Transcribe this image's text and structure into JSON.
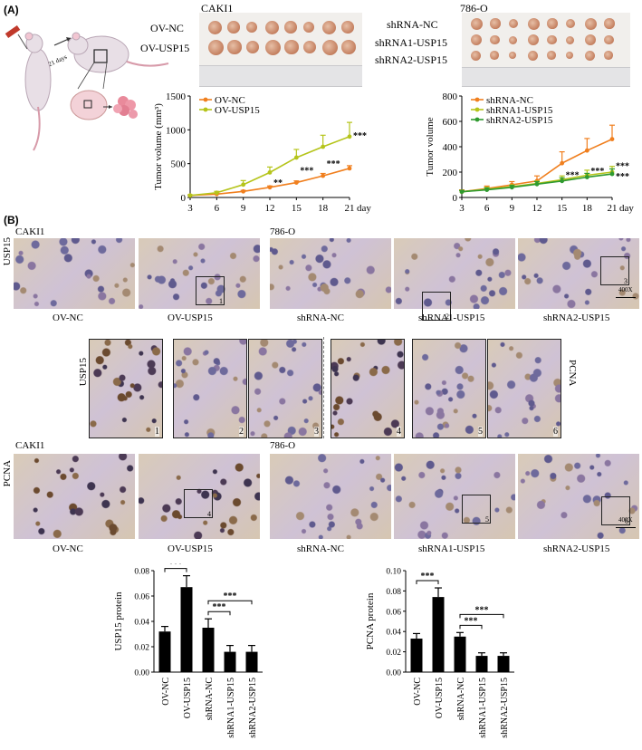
{
  "panel_labels": {
    "a": "(A)",
    "b": "(B)"
  },
  "schematic": {
    "arrow_label": "21 days"
  },
  "photos": {
    "left_title": "CAKI1",
    "left_rows": [
      "OV-NC",
      "OV-USP15"
    ],
    "right_title": "786-O",
    "right_rows": [
      "shRNA-NC",
      "shRNA1-USP15",
      "shRNA2-USP15"
    ]
  },
  "ihc": {
    "usp15_row_label": "USP15",
    "pcna_row_label": "PCNA",
    "group_left": "CAKI1",
    "group_right": "786-O",
    "captions": [
      "OV-NC",
      "OV-USP15",
      "shRNA-NC",
      "shRNA1-USP15",
      "shRNA2-USP15"
    ],
    "box_numbers_top": [
      "1",
      "2",
      "3"
    ],
    "box_numbers_bottom": [
      "4",
      "5",
      "6"
    ],
    "zoom_left_label": "USP15",
    "zoom_right_label": "PCNA",
    "zoom_numbers": [
      "1",
      "2",
      "3",
      "4",
      "5",
      "6"
    ],
    "scale_label": "400X"
  },
  "colors": {
    "orange": "#f07f1e",
    "yellowgreen": "#b5c41a",
    "green": "#2f9a2f",
    "black": "#000000"
  },
  "chart_data": [
    {
      "type": "line",
      "title": "",
      "xlabel": "day",
      "ylabel": "Tumor volume (mm³)",
      "x": [
        3,
        6,
        9,
        12,
        15,
        18,
        21
      ],
      "xlim": [
        3,
        21
      ],
      "ylim": [
        0,
        1500
      ],
      "yticks": [
        0,
        500,
        1000,
        1500
      ],
      "series": [
        {
          "name": "OV-NC",
          "color": "#f07f1e",
          "values": [
            30,
            50,
            90,
            150,
            220,
            320,
            430
          ],
          "errors": [
            5,
            10,
            15,
            20,
            25,
            35,
            40
          ]
        },
        {
          "name": "OV-USP15",
          "color": "#b5c41a",
          "values": [
            30,
            70,
            190,
            370,
            590,
            750,
            900
          ],
          "errors": [
            10,
            20,
            60,
            80,
            120,
            170,
            210
          ]
        }
      ],
      "annotations": [
        {
          "x": 12,
          "text": "**"
        },
        {
          "x": 15,
          "text": "***"
        },
        {
          "x": 18,
          "text": "***"
        },
        {
          "x": 21,
          "text": "***"
        }
      ],
      "legend": "top-left"
    },
    {
      "type": "line",
      "title": "",
      "xlabel": "day",
      "ylabel": "Tumor volume",
      "x": [
        3,
        6,
        9,
        12,
        15,
        18,
        21
      ],
      "xlim": [
        3,
        21
      ],
      "ylim": [
        0,
        800
      ],
      "yticks": [
        0,
        200,
        400,
        600,
        800
      ],
      "series": [
        {
          "name": "shRNA-NC",
          "color": "#f07f1e",
          "values": [
            45,
            70,
            100,
            130,
            270,
            370,
            460
          ],
          "errors": [
            15,
            20,
            25,
            40,
            90,
            95,
            110
          ]
        },
        {
          "name": "shRNA1-USP15",
          "color": "#b5c41a",
          "values": [
            45,
            65,
            85,
            110,
            140,
            175,
            200
          ],
          "errors": [
            10,
            15,
            15,
            20,
            30,
            40,
            45
          ]
        },
        {
          "name": "shRNA2-USP15",
          "color": "#2f9a2f",
          "values": [
            45,
            60,
            80,
            105,
            130,
            160,
            185
          ],
          "errors": [
            10,
            15,
            15,
            20,
            25,
            30,
            40
          ]
        }
      ],
      "annotations": [
        {
          "x": 15,
          "text": "***"
        },
        {
          "x": 18,
          "text": "***"
        },
        {
          "x": 21,
          "text": "***"
        },
        {
          "x": 21,
          "text": "***"
        }
      ],
      "legend": "top-left"
    },
    {
      "type": "bar",
      "title": "",
      "xlabel": "",
      "ylabel": "USP15 protein",
      "categories": [
        "OV-NC",
        "OV-USP15",
        "shRNA-NC",
        "shRNA1-USP15",
        "shRNA2-USP15"
      ],
      "values": [
        0.032,
        0.067,
        0.035,
        0.016,
        0.016
      ],
      "errors": [
        0.004,
        0.009,
        0.007,
        0.005,
        0.005
      ],
      "ylim": [
        0,
        0.08
      ],
      "yticks": [
        "0.00",
        "0.02",
        "0.04",
        "0.06",
        "0.08"
      ],
      "significance": [
        {
          "from": 0,
          "to": 1,
          "text": "***"
        },
        {
          "from": 2,
          "to": 3,
          "text": "***"
        },
        {
          "from": 2,
          "to": 4,
          "text": "***"
        }
      ]
    },
    {
      "type": "bar",
      "title": "",
      "xlabel": "",
      "ylabel": "PCNA protein",
      "categories": [
        "OV-NC",
        "OV-USP15",
        "shRNA-NC",
        "shRNA1-USP15",
        "shRNA2-USP15"
      ],
      "values": [
        0.033,
        0.074,
        0.035,
        0.016,
        0.016
      ],
      "errors": [
        0.005,
        0.009,
        0.004,
        0.003,
        0.003
      ],
      "ylim": [
        0,
        0.1
      ],
      "yticks": [
        "0.00",
        "0.02",
        "0.04",
        "0.06",
        "0.08",
        "0.10"
      ],
      "significance": [
        {
          "from": 0,
          "to": 1,
          "text": "***"
        },
        {
          "from": 2,
          "to": 3,
          "text": "***"
        },
        {
          "from": 2,
          "to": 4,
          "text": "***"
        }
      ]
    }
  ]
}
